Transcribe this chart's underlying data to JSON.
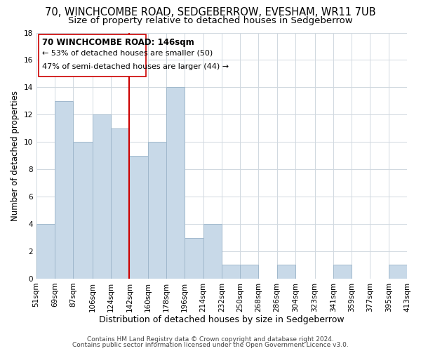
{
  "title": "70, WINCHCOMBE ROAD, SEDGEBERROW, EVESHAM, WR11 7UB",
  "subtitle": "Size of property relative to detached houses in Sedgeberrow",
  "xlabel": "Distribution of detached houses by size in Sedgeberrow",
  "ylabel": "Number of detached properties",
  "bin_edges": [
    51,
    69,
    87,
    106,
    124,
    142,
    160,
    178,
    196,
    214,
    232,
    250,
    268,
    286,
    304,
    323,
    341,
    359,
    377,
    395,
    413
  ],
  "bar_heights": [
    4,
    13,
    10,
    12,
    11,
    9,
    10,
    14,
    3,
    4,
    1,
    1,
    0,
    1,
    0,
    0,
    1,
    0,
    0,
    1
  ],
  "bar_color": "#c8d9e8",
  "bar_edgecolor": "#a0b8cc",
  "vline_x": 142,
  "vline_color": "#cc0000",
  "annotation_title": "70 WINCHCOMBE ROAD: 146sqm",
  "annotation_line1": "← 53% of detached houses are smaller (50)",
  "annotation_line2": "47% of semi-detached houses are larger (44) →",
  "annotation_box_edgecolor": "#cc0000",
  "ylim": [
    0,
    18
  ],
  "yticks": [
    0,
    2,
    4,
    6,
    8,
    10,
    12,
    14,
    16,
    18
  ],
  "tick_labels": [
    "51sqm",
    "69sqm",
    "87sqm",
    "106sqm",
    "124sqm",
    "142sqm",
    "160sqm",
    "178sqm",
    "196sqm",
    "214sqm",
    "232sqm",
    "250sqm",
    "268sqm",
    "286sqm",
    "304sqm",
    "323sqm",
    "341sqm",
    "359sqm",
    "377sqm",
    "395sqm",
    "413sqm"
  ],
  "footer_line1": "Contains HM Land Registry data © Crown copyright and database right 2024.",
  "footer_line2": "Contains public sector information licensed under the Open Government Licence v3.0.",
  "background_color": "#ffffff",
  "grid_color": "#d0d8e0",
  "title_fontsize": 10.5,
  "subtitle_fontsize": 9.5,
  "xlabel_fontsize": 9,
  "ylabel_fontsize": 8.5,
  "tick_fontsize": 7.5,
  "annotation_title_fontsize": 8.5,
  "annotation_body_fontsize": 8,
  "footer_fontsize": 6.5
}
